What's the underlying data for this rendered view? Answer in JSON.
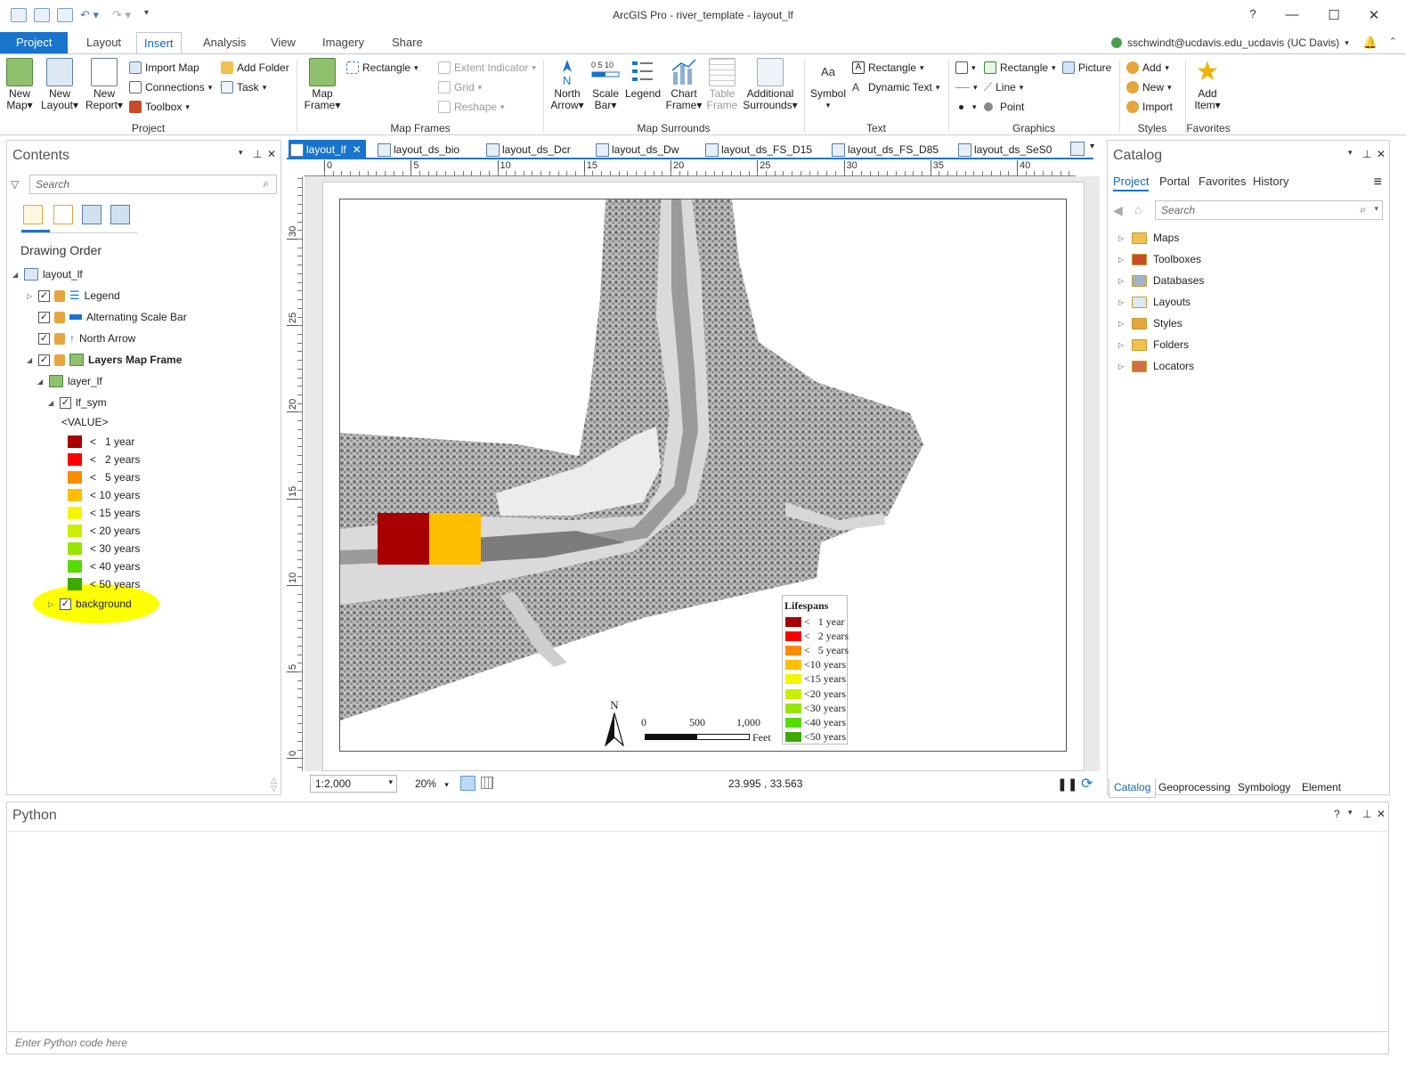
{
  "app": {
    "title": "ArcGIS Pro - river_template - layout_lf",
    "help": "?",
    "user": "sschwindt@ucdavis.edu_ucdavis (UC Davis)"
  },
  "ribbon_tabs": [
    "Project",
    "Layout",
    "Insert",
    "Analysis",
    "View",
    "Imagery",
    "Share"
  ],
  "ribbon": {
    "project_group": {
      "label": "Project",
      "new_map": [
        "New",
        "Map"
      ],
      "new_layout": [
        "New",
        "Layout"
      ],
      "new_report": [
        "New",
        "Report"
      ],
      "import_map": "Import Map",
      "connections": "Connections",
      "toolbox": "Toolbox",
      "add_folder": "Add Folder",
      "task": "Task"
    },
    "map_frames_group": {
      "label": "Map Frames",
      "map_frame": [
        "Map",
        "Frame"
      ],
      "rectangle": "Rectangle",
      "extent_indicator": "Extent Indicator",
      "grid": "Grid",
      "reshape": "Reshape"
    },
    "map_surrounds_group": {
      "label": "Map Surrounds",
      "north_arrow": [
        "North",
        "Arrow"
      ],
      "scale_bar": [
        "Scale",
        "Bar"
      ],
      "legend": "Legend",
      "chart_frame": [
        "Chart",
        "Frame"
      ],
      "table_frame": [
        "Table",
        "Frame"
      ],
      "additional_surrounds": [
        "Additional",
        "Surrounds"
      ]
    },
    "text_group": {
      "label": "Text",
      "symbol": "Symbol",
      "rectangle": "Rectangle",
      "dynamic_text": "Dynamic Text"
    },
    "graphics_group": {
      "label": "Graphics",
      "rectangle": "Rectangle",
      "line": "Line",
      "point": "Point",
      "picture": "Picture"
    },
    "styles_group": {
      "label": "Styles",
      "add": "Add",
      "new": "New",
      "import": "Import"
    },
    "favorites_group": {
      "label": "Favorites",
      "add_item": [
        "Add",
        "Item"
      ]
    }
  },
  "contents": {
    "title": "Contents",
    "search_placeholder": "Search",
    "heading": "Drawing Order",
    "layout_name": "layout_lf",
    "items": {
      "legend": "Legend",
      "scale_bar": "Alternating Scale Bar",
      "north_arrow": "North Arrow",
      "map_frame": "Layers Map Frame",
      "layer": "layer_lf",
      "sym": "lf_sym",
      "value_field": "<VALUE>",
      "background": "background"
    },
    "classes": [
      {
        "label": "<   1 year",
        "color": "#a80000"
      },
      {
        "label": "<   2 years",
        "color": "#ff0000"
      },
      {
        "label": "<   5 years",
        "color": "#ff8c00"
      },
      {
        "label": "< 10 years",
        "color": "#ffbe00"
      },
      {
        "label": "< 15 years",
        "color": "#f5f500"
      },
      {
        "label": "< 20 years",
        "color": "#c8f000"
      },
      {
        "label": "< 30 years",
        "color": "#96e600"
      },
      {
        "label": "< 40 years",
        "color": "#55dc00"
      },
      {
        "label": "< 50 years",
        "color": "#3caa00"
      }
    ],
    "highlight_color": "#ffff00"
  },
  "doc_tabs": [
    "layout_lf",
    "layout_ds_bio",
    "layout_ds_Dcr",
    "layout_ds_Dw",
    "layout_ds_FS_D15",
    "layout_ds_FS_D85",
    "layout_ds_SeS0"
  ],
  "ruler": {
    "h": [
      "0",
      "5",
      "10",
      "15",
      "20",
      "25",
      "30",
      "35",
      "40"
    ],
    "v": [
      "30",
      "25",
      "20",
      "15",
      "10",
      "5",
      "0"
    ]
  },
  "layout": {
    "legend_title": "Lifespans",
    "legend_items": [
      "<   1 year",
      "<   2 years",
      "<   5 years",
      "<10 years",
      "<15 years",
      "<20 years",
      "<30 years",
      "<40 years",
      "<50 years"
    ],
    "north_label": "N",
    "scale_labels": [
      "0",
      "500",
      "1,000"
    ],
    "scale_unit": "Feet"
  },
  "status": {
    "scale": "1:2,000",
    "zoom": "20%",
    "coords": "23.995 , 33.563"
  },
  "catalog": {
    "title": "Catalog",
    "tabs": [
      "Project",
      "Portal",
      "Favorites",
      "History"
    ],
    "search_placeholder": "Search",
    "items": [
      "Maps",
      "Toolboxes",
      "Databases",
      "Layouts",
      "Styles",
      "Folders",
      "Locators"
    ],
    "bottom_tabs": [
      "Catalog",
      "Geoprocessing",
      "Symbology",
      "Element"
    ]
  },
  "python": {
    "title": "Python",
    "placeholder": "Enter Python code here",
    "help": "?"
  }
}
